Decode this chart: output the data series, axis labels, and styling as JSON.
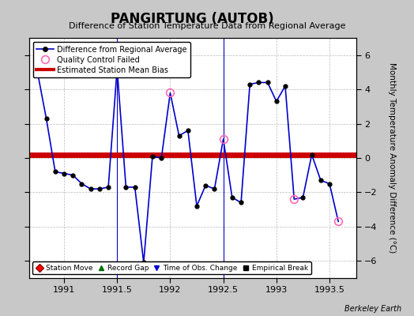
{
  "title": "PANGIRTUNG (AUTOB)",
  "subtitle": "Difference of Station Temperature Data from Regional Average",
  "ylabel": "Monthly Temperature Anomaly Difference (°C)",
  "credit": "Berkeley Earth",
  "background_color": "#c8c8c8",
  "plot_bg_color": "#ffffff",
  "bias_line_value": 0.2,
  "ylim": [
    -7,
    7
  ],
  "xlim": [
    1990.67,
    1993.75
  ],
  "xticks": [
    1991,
    1991.5,
    1992,
    1992.5,
    1993,
    1993.5
  ],
  "yticks": [
    -6,
    -4,
    -2,
    0,
    2,
    4,
    6
  ],
  "line_color": "#0000cc",
  "dot_color": "#000000",
  "bias_color": "#cc0000",
  "qc_color": "#ff69b4",
  "x": [
    1990.75,
    1990.833,
    1990.917,
    1991.0,
    1991.083,
    1991.167,
    1991.25,
    1991.333,
    1991.417,
    1991.5,
    1991.583,
    1991.667,
    1991.75,
    1991.833,
    1991.917,
    1992.0,
    1992.083,
    1992.167,
    1992.25,
    1992.333,
    1992.417,
    1992.5,
    1992.583,
    1992.667,
    1992.75,
    1992.833,
    1992.917,
    1993.0,
    1993.083,
    1993.167,
    1993.25,
    1993.333,
    1993.417,
    1993.5,
    1993.583
  ],
  "y": [
    5.0,
    2.3,
    -0.8,
    -0.9,
    -1.0,
    -1.5,
    -1.8,
    -1.8,
    -1.7,
    5.2,
    -1.7,
    -1.7,
    -6.1,
    0.1,
    0.0,
    3.8,
    1.3,
    1.6,
    -2.8,
    -1.6,
    -1.8,
    1.1,
    -2.3,
    -2.6,
    4.3,
    4.4,
    4.4,
    3.3,
    4.2,
    -2.4,
    -2.3,
    0.2,
    -1.3,
    -1.5,
    -3.7
  ],
  "qc_failed_indices": [
    0,
    9,
    15,
    21,
    29,
    34
  ],
  "vline_x": [
    1991.5,
    1992.5
  ],
  "vline_color": "#0000cc"
}
